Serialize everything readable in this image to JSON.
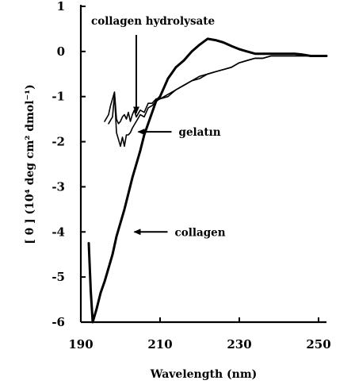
{
  "chart_data": {
    "type": "line",
    "title": "",
    "xlabel": "Wavelength (nm)",
    "ylabel": "[ θ ] (10⁴ deg cm² dmol⁻¹)",
    "xlim": [
      190,
      252
    ],
    "ylim": [
      -6,
      1
    ],
    "xticks": [
      190,
      210,
      230,
      250
    ],
    "xtick_labels": [
      "190",
      "210",
      "230",
      "250"
    ],
    "yticks": [
      1,
      0,
      -1,
      -2,
      -3,
      -4,
      -5,
      -6
    ],
    "ytick_labels": [
      "1",
      "0",
      "-1",
      "-2",
      "-3",
      "-4",
      "-5",
      "-6"
    ],
    "grid": false,
    "legend": "none",
    "series": [
      {
        "name": "collagen",
        "color": "#000000",
        "x": [
          192.0,
          192.5,
          193.0,
          194.0,
          195.0,
          196.0,
          197.0,
          198.0,
          199.0,
          200.0,
          201.0,
          202.0,
          203.0,
          204.0,
          205.0,
          206.0,
          207.0,
          208.0,
          209.0,
          210.0,
          212.0,
          214.0,
          216.0,
          218.0,
          220.0,
          222.0,
          224.0,
          226.0,
          228.0,
          230.0,
          232.0,
          234.0,
          236.0,
          238.0,
          240.0,
          242.0,
          244.0,
          246.0,
          248.0,
          250.0,
          252.0
        ],
        "y": [
          -4.25,
          -5.3,
          -6.0,
          -5.7,
          -5.35,
          -5.1,
          -4.8,
          -4.5,
          -4.1,
          -3.8,
          -3.5,
          -3.15,
          -2.8,
          -2.5,
          -2.2,
          -1.85,
          -1.6,
          -1.35,
          -1.1,
          -1.0,
          -0.6,
          -0.35,
          -0.2,
          0.0,
          0.15,
          0.28,
          0.25,
          0.2,
          0.12,
          0.05,
          0.0,
          -0.05,
          -0.05,
          -0.05,
          -0.05,
          -0.05,
          -0.05,
          -0.07,
          -0.1,
          -0.1,
          -0.1
        ]
      },
      {
        "name": "collagen hydrolysate",
        "color": "#000000",
        "x": [
          196.0,
          197.0,
          197.5,
          198.0,
          198.5,
          199.0,
          199.5,
          200.0,
          200.5,
          201.0,
          201.5,
          202.0,
          202.5,
          203.0,
          203.5,
          204.0,
          205.0,
          206.0,
          207.0,
          208.0,
          209.0,
          210.0,
          212.0,
          214.0,
          216.0,
          218.0,
          220.0,
          222.0,
          224.0,
          226.0,
          228.0,
          230.0,
          232.0,
          234.0,
          236.0,
          238.0,
          240.0,
          242.0,
          244.0,
          246.0,
          248.0,
          250.0,
          252.0
        ],
        "y": [
          -1.55,
          -1.4,
          -1.2,
          -1.05,
          -0.9,
          -1.5,
          -1.6,
          -1.55,
          -1.45,
          -1.4,
          -1.5,
          -1.35,
          -1.55,
          -1.4,
          -1.3,
          -1.45,
          -1.3,
          -1.35,
          -1.15,
          -1.15,
          -1.05,
          -1.05,
          -1.0,
          -0.85,
          -0.75,
          -0.65,
          -0.55,
          -0.5,
          -0.45,
          -0.4,
          -0.35,
          -0.25,
          -0.2,
          -0.15,
          -0.15,
          -0.1,
          -0.1,
          -0.1,
          -0.1,
          -0.1,
          -0.1,
          -0.1,
          -0.1
        ]
      },
      {
        "name": "gelatin",
        "color": "#000000",
        "x": [
          197.0,
          198.0,
          198.5,
          199.0,
          199.5,
          200.0,
          200.5,
          201.0,
          201.5,
          202.0,
          202.5,
          203.0,
          204.0,
          205.0,
          206.0,
          207.0,
          208.0,
          209.0,
          210.0,
          212.0,
          214.0,
          216.0,
          218.0,
          220.0,
          222.0,
          224.0,
          226.0,
          228.0,
          230.0,
          232.0,
          234.0,
          236.0,
          238.0,
          240.0,
          242.0,
          244.0,
          246.0,
          248.0,
          250.0,
          252.0
        ],
        "y": [
          -1.6,
          -1.45,
          -0.95,
          -1.8,
          -1.95,
          -2.1,
          -1.9,
          -2.1,
          -1.85,
          -1.85,
          -1.8,
          -1.7,
          -1.55,
          -1.4,
          -1.45,
          -1.25,
          -1.2,
          -1.1,
          -1.05,
          -0.95,
          -0.85,
          -0.75,
          -0.65,
          -0.6,
          -0.5,
          -0.45,
          -0.4,
          -0.35,
          -0.25,
          -0.2,
          -0.15,
          -0.15,
          -0.1,
          -0.1,
          -0.1,
          -0.1,
          -0.1,
          -0.1,
          -0.1,
          -0.1
        ]
      }
    ],
    "annotations": [
      {
        "text": "collagen hydrolysate",
        "arrow_to": [
          204.0,
          -1.4
        ],
        "arrow_direction": "down"
      },
      {
        "text": "gelatın",
        "arrow_to": [
          204.5,
          -1.78
        ],
        "arrow_direction": "left"
      },
      {
        "text": "collagen",
        "arrow_to": [
          203.5,
          -4.0
        ],
        "arrow_direction": "left"
      }
    ]
  }
}
